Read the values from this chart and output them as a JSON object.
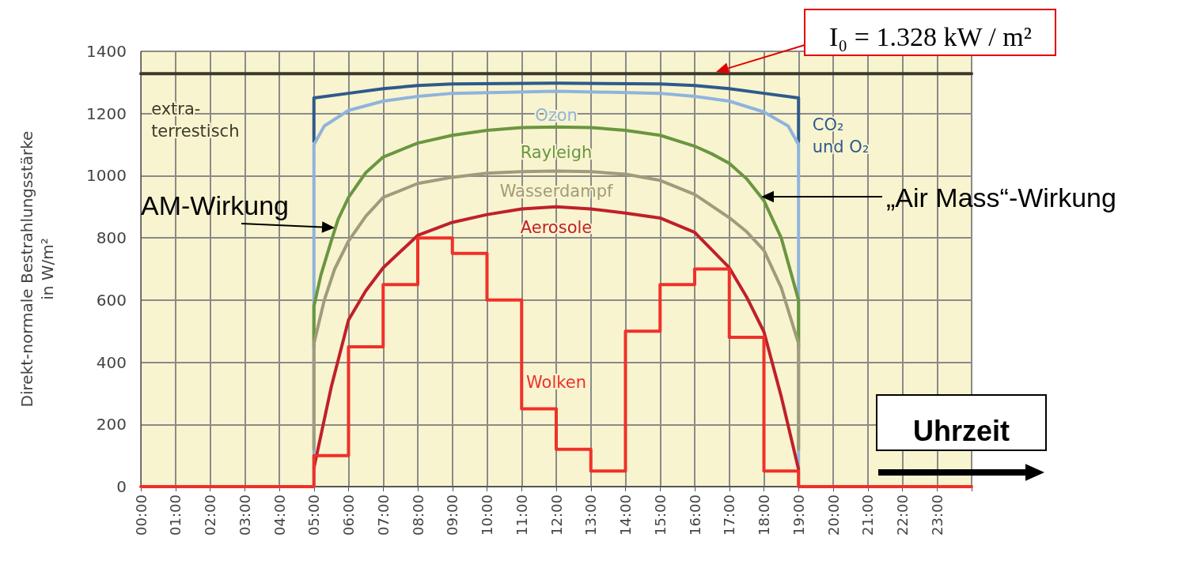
{
  "chart_data": {
    "type": "line",
    "ylabel": "Direkt-normale Bestrahlungsstärke in W/m²",
    "xlim": [
      0,
      24
    ],
    "xticks": [
      {
        "value": 0,
        "label": "00:00"
      },
      {
        "value": 1,
        "label": "01:00"
      },
      {
        "value": 2,
        "label": "02:00"
      },
      {
        "value": 3,
        "label": "03:00"
      },
      {
        "value": 4,
        "label": "04:00"
      },
      {
        "value": 5,
        "label": "05:00"
      },
      {
        "value": 6,
        "label": "06:00"
      },
      {
        "value": 7,
        "label": "07:00"
      },
      {
        "value": 8,
        "label": "08:00"
      },
      {
        "value": 9,
        "label": "09:00"
      },
      {
        "value": 10,
        "label": "10:00"
      },
      {
        "value": 11,
        "label": "11:00"
      },
      {
        "value": 12,
        "label": "12:00"
      },
      {
        "value": 13,
        "label": "13:00"
      },
      {
        "value": 14,
        "label": "14:00"
      },
      {
        "value": 15,
        "label": "15:00"
      },
      {
        "value": 16,
        "label": "16:00"
      },
      {
        "value": 17,
        "label": "17:00"
      },
      {
        "value": 18,
        "label": "18:00"
      },
      {
        "value": 19,
        "label": "19:00"
      },
      {
        "value": 20,
        "label": "20:00"
      },
      {
        "value": 21,
        "label": "21:00"
      },
      {
        "value": 22,
        "label": "22:00"
      },
      {
        "value": 23,
        "label": "23:00"
      }
    ],
    "ylim": [
      0,
      1400
    ],
    "yticks": [
      0,
      200,
      400,
      600,
      800,
      1000,
      1200,
      1400
    ],
    "grid": true,
    "legend": false,
    "series": [
      {
        "name": "extra-terrestisch",
        "color": "#3a3a2a",
        "x": [
          0,
          24
        ],
        "values": [
          1328,
          1328
        ]
      },
      {
        "name": "CO₂ und O₂",
        "color": "#2e5a8c",
        "x": [
          5,
          5,
          6,
          7,
          8,
          9,
          12,
          15,
          16,
          17,
          18,
          19,
          19
        ],
        "values": [
          1110,
          1250,
          1265,
          1280,
          1290,
          1295,
          1298,
          1295,
          1290,
          1280,
          1265,
          1250,
          1110
        ]
      },
      {
        "name": "Ozon",
        "color": "#8fb4dc",
        "x": [
          5,
          5,
          5.3,
          6,
          7,
          8,
          9,
          12,
          15,
          16,
          17,
          18,
          18.7,
          19,
          19
        ],
        "values": [
          0,
          1100,
          1160,
          1210,
          1240,
          1255,
          1265,
          1272,
          1265,
          1255,
          1240,
          1205,
          1160,
          1100,
          0
        ]
      },
      {
        "name": "Rayleigh",
        "color": "#6a9640",
        "x": [
          5,
          5,
          5.2,
          5.5,
          5.7,
          6,
          6.5,
          7,
          8,
          9,
          10,
          11,
          12,
          13,
          14,
          15,
          16,
          16.5,
          17,
          17.5,
          18,
          18.5,
          19,
          19
        ],
        "values": [
          450,
          580,
          680,
          790,
          860,
          930,
          1010,
          1060,
          1105,
          1130,
          1146,
          1155,
          1157,
          1155,
          1146,
          1130,
          1095,
          1070,
          1040,
          990,
          920,
          800,
          600,
          450
        ]
      },
      {
        "name": "Wasserdampf",
        "color": "#a09b7c",
        "x": [
          5,
          5,
          5.3,
          5.6,
          6,
          6.5,
          7,
          8,
          9,
          10,
          11,
          12,
          13,
          14,
          15,
          16,
          17,
          17.5,
          18,
          18.5,
          19,
          19
        ],
        "values": [
          120,
          460,
          600,
          700,
          790,
          870,
          930,
          975,
          995,
          1008,
          1013,
          1015,
          1013,
          1005,
          985,
          940,
          865,
          820,
          760,
          640,
          460,
          120
        ]
      },
      {
        "name": "Aerosole",
        "color": "#c0202a",
        "x": [
          5,
          5.5,
          6,
          6.5,
          7,
          8,
          9,
          10,
          11,
          12,
          13,
          14,
          15,
          16,
          17,
          17.5,
          18,
          18.5,
          19
        ],
        "values": [
          60,
          320,
          536,
          630,
          704,
          808,
          850,
          875,
          893,
          900,
          893,
          880,
          864,
          818,
          704,
          610,
          498,
          290,
          56
        ]
      },
      {
        "name": "Wolken",
        "type": "step",
        "color": "#f0302a",
        "x": [
          0,
          5,
          6,
          7,
          8,
          9,
          10,
          11,
          12,
          13,
          14,
          15,
          16,
          17,
          18,
          19,
          24
        ],
        "values": [
          0,
          100,
          450,
          650,
          800,
          750,
          600,
          250,
          120,
          50,
          500,
          650,
          700,
          480,
          50,
          0,
          0
        ]
      }
    ],
    "annotations": [
      {
        "text": "AM-Wirkung",
        "x": 5.6,
        "y": 833
      },
      "„Air Mass“-Wirkung",
      "I₀ = 1.328 kW / m²",
      "Uhrzeit"
    ]
  }
}
